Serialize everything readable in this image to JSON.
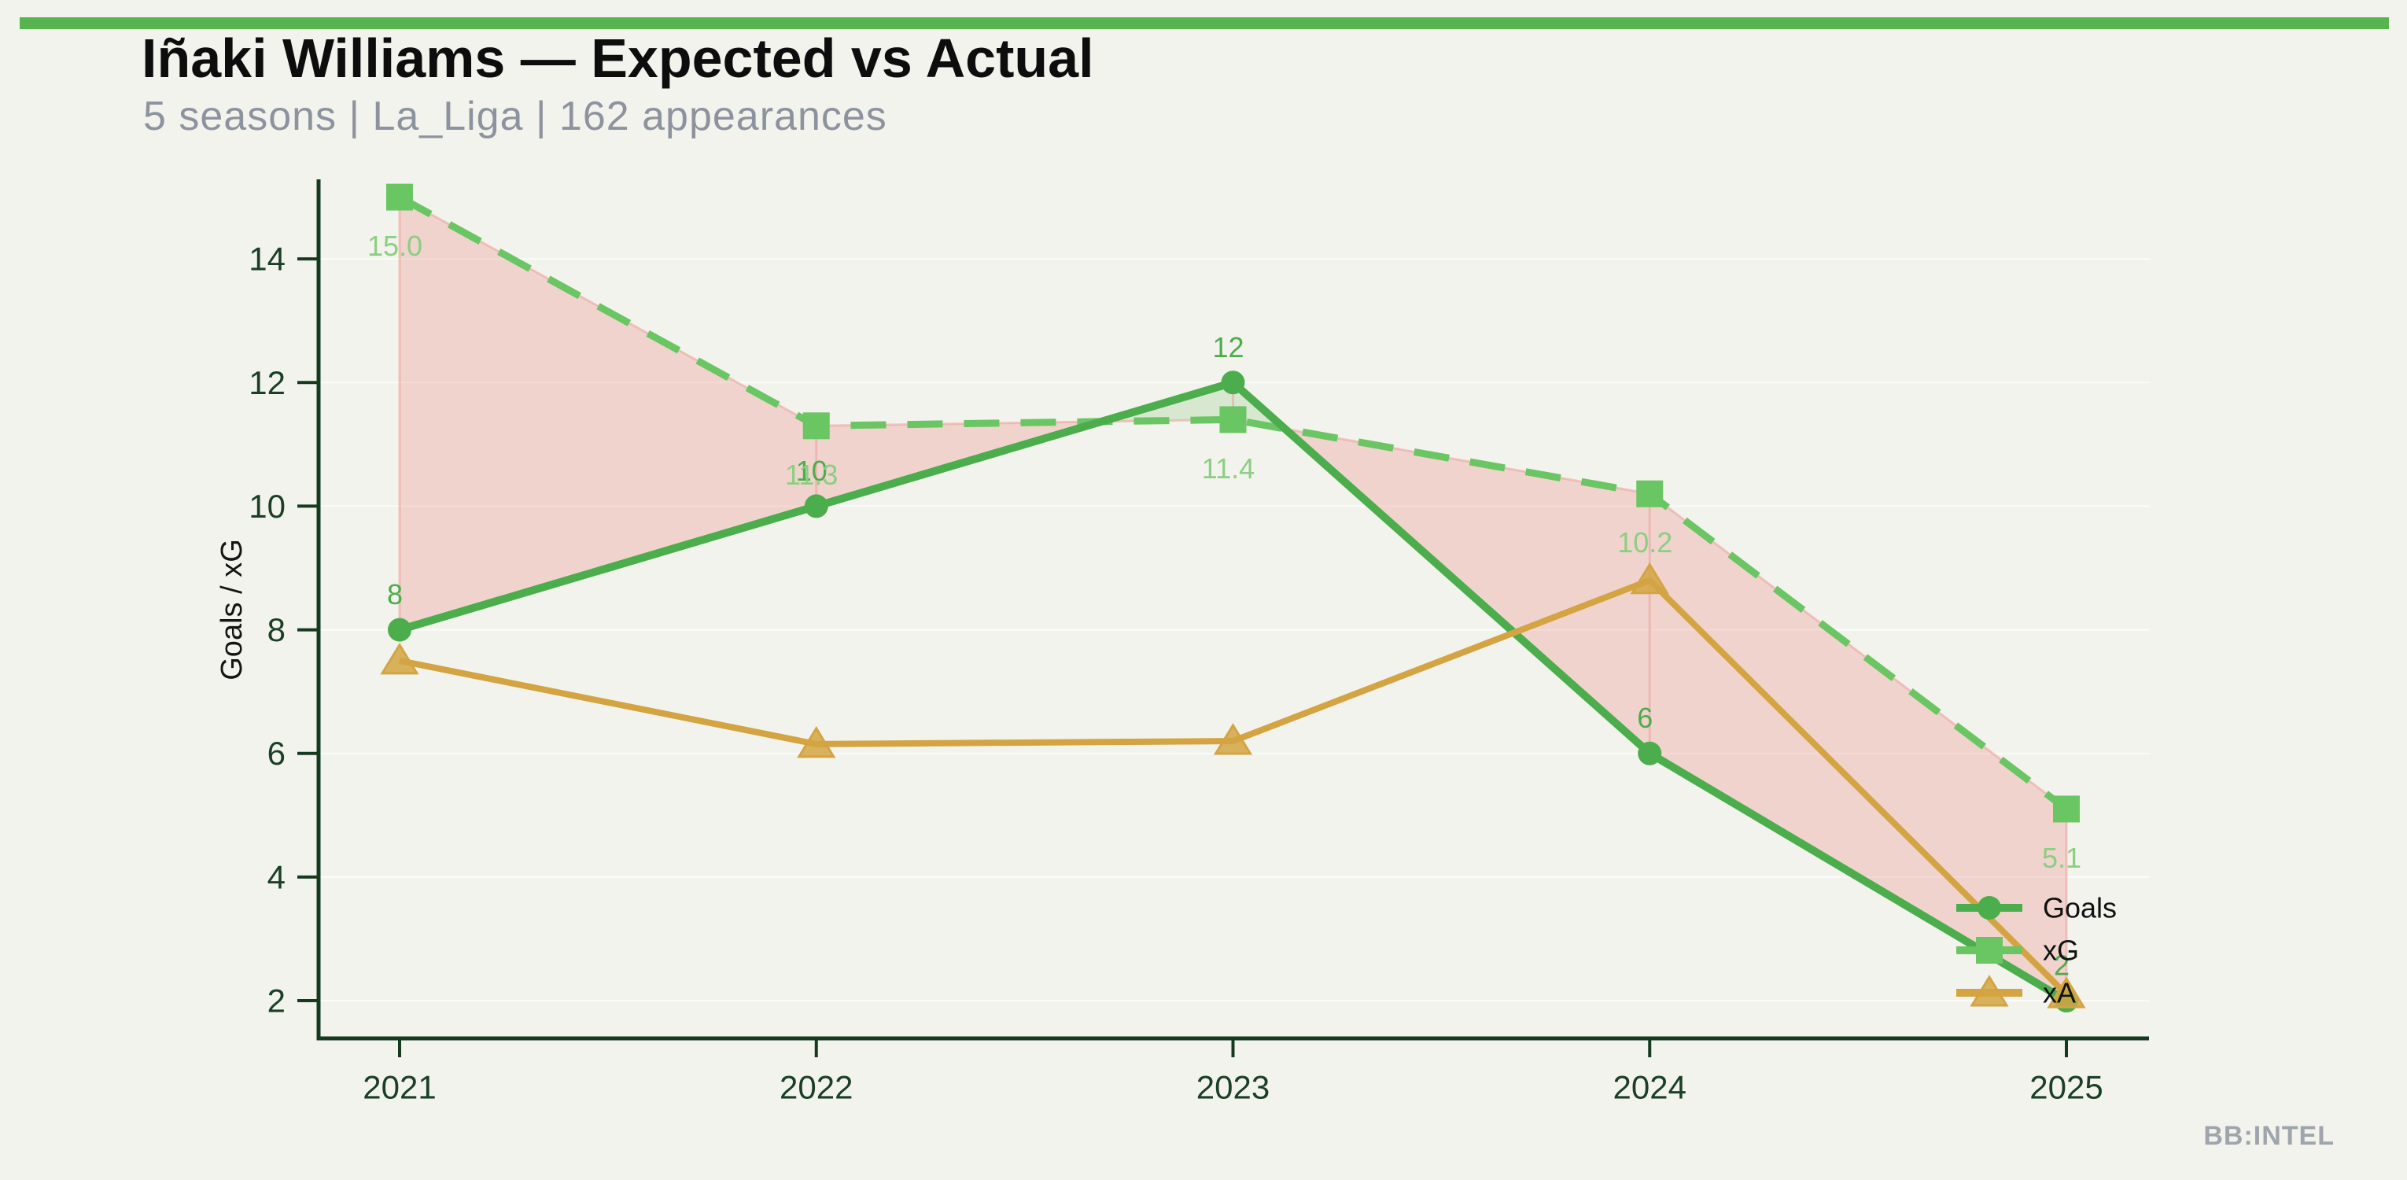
{
  "header": {
    "title": "Iñaki Williams — Expected vs Actual",
    "subtitle": "5 seasons | La_Liga | 162 appearances"
  },
  "watermark": "BB:INTEL",
  "colors": {
    "background": "#f2f3ec",
    "accent_bar": "#57b44f",
    "title": "#0d0d0d",
    "subtitle": "#8d939e",
    "axis_text": "#1b3f26",
    "spine": "#163a20",
    "grid": "#ffffff",
    "fill_xg_over_goals": "#eda09b",
    "fill_goals_over_xg": "#78be6e",
    "diff_line": "#eda09b",
    "watermark": "#9fa5ad",
    "legend_text": "#111111"
  },
  "chart_data": {
    "type": "line",
    "title": "Iñaki Williams — Expected vs Actual",
    "subtitle": "5 seasons | La_Liga | 162 appearances",
    "x": [
      "2021",
      "2022",
      "2023",
      "2024",
      "2025"
    ],
    "series": [
      {
        "name": "Goals",
        "values": [
          8,
          10,
          12,
          6,
          2
        ],
        "point_labels": [
          "8",
          "10",
          "12",
          "6",
          "2"
        ],
        "color": "#4bad4b",
        "label_color": "#4bad4b",
        "marker": "circle",
        "line_style": "solid"
      },
      {
        "name": "xG",
        "values": [
          15.0,
          11.3,
          11.4,
          10.2,
          5.1
        ],
        "point_labels": [
          "15.0",
          "11.3",
          "11.4",
          "10.2",
          "5.1"
        ],
        "color": "#69c663",
        "label_color": "#8bcf82",
        "marker": "square",
        "line_style": "dashed"
      },
      {
        "name": "xA",
        "values": [
          7.5,
          6.15,
          6.2,
          8.8,
          2.1
        ],
        "point_labels": [],
        "color": "#d4a443",
        "label_color": "#d4a443",
        "marker": "triangle",
        "line_style": "solid"
      }
    ],
    "xlabel": "",
    "ylabel": "Goals / xG",
    "yticks": [
      2,
      4,
      6,
      8,
      10,
      12,
      14
    ],
    "ylim": [
      1.4,
      15.6
    ],
    "grid": true,
    "legend_position": "lower right inside",
    "fill_between": {
      "upper_series": "xG",
      "lower_series": "Goals",
      "over_color_note": "pink where xG > Goals, light green where Goals > xG"
    }
  }
}
